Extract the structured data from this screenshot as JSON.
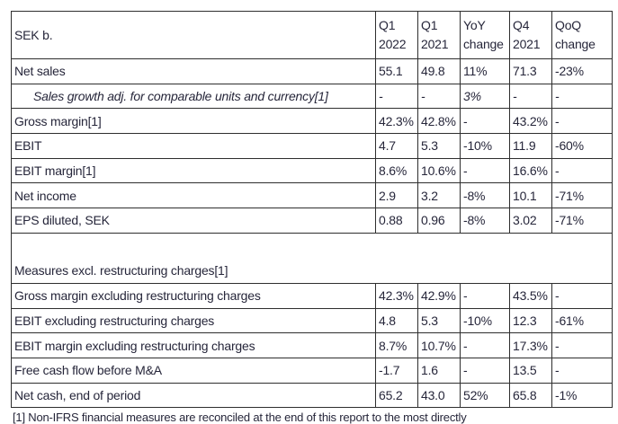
{
  "table": {
    "corner_label": "SEK b.",
    "columns": [
      {
        "line1": "Q1",
        "line2": "2022"
      },
      {
        "line1": "Q1",
        "line2": "2021"
      },
      {
        "line1": "YoY",
        "line2": "change"
      },
      {
        "line1": "Q4",
        "line2": "2021"
      },
      {
        "line1": "QoQ",
        "line2": "change"
      }
    ],
    "rows": [
      {
        "label": "Net sales",
        "style": "normal",
        "values": [
          "55.1",
          "49.8",
          "11%",
          "71.3",
          "-23%"
        ]
      },
      {
        "label": "Sales growth adj. for comparable units and currency[1]",
        "style": "italic-indent",
        "values": [
          "-",
          "-",
          "3%",
          "-",
          "-"
        ]
      },
      {
        "label": "Gross margin[1]",
        "style": "normal",
        "values": [
          "42.3%",
          "42.8%",
          "-",
          "43.2%",
          "-"
        ]
      },
      {
        "label": "EBIT",
        "style": "normal",
        "values": [
          "4.7",
          "5.3",
          "-10%",
          "11.9",
          "-60%"
        ]
      },
      {
        "label": "EBIT margin[1]",
        "style": "normal",
        "values": [
          "8.6%",
          "10.6%",
          "-",
          "16.6%",
          "-"
        ]
      },
      {
        "label": "Net income",
        "style": "normal",
        "values": [
          "2.9",
          "3.2",
          "-8%",
          "10.1",
          "-71%"
        ]
      },
      {
        "label": "EPS diluted, SEK",
        "style": "normal",
        "values": [
          "0.88",
          "0.96",
          "-8%",
          "3.02",
          "-71%"
        ]
      },
      {
        "label": "Measures excl. restructuring charges[1]",
        "style": "section",
        "values": []
      },
      {
        "label": "Gross margin excluding restructuring charges",
        "style": "normal",
        "values": [
          "42.3%",
          "42.9%",
          "-",
          "43.5%",
          "-"
        ]
      },
      {
        "label": "EBIT excluding restructuring charges",
        "style": "normal",
        "values": [
          "4.8",
          "5.3",
          "-10%",
          "12.3",
          "-61%"
        ]
      },
      {
        "label": "EBIT margin excluding restructuring charges",
        "style": "normal",
        "values": [
          "8.7%",
          "10.7%",
          "-",
          "17.3%",
          "-"
        ]
      },
      {
        "label": "Free cash flow before M&A",
        "style": "normal",
        "values": [
          "-1.7",
          "1.6",
          "-",
          "13.5",
          "-"
        ]
      },
      {
        "label": "Net cash, end of period",
        "style": "normal",
        "values": [
          "65.2",
          "43.0",
          "52%",
          "65.8",
          "-1%"
        ]
      }
    ],
    "footnote": "[1] Non-IFRS financial measures are reconciled at the end of this report to the most directly"
  },
  "colors": {
    "text": "#26263a",
    "border": "#2e2e2e",
    "background": "#ffffff"
  }
}
